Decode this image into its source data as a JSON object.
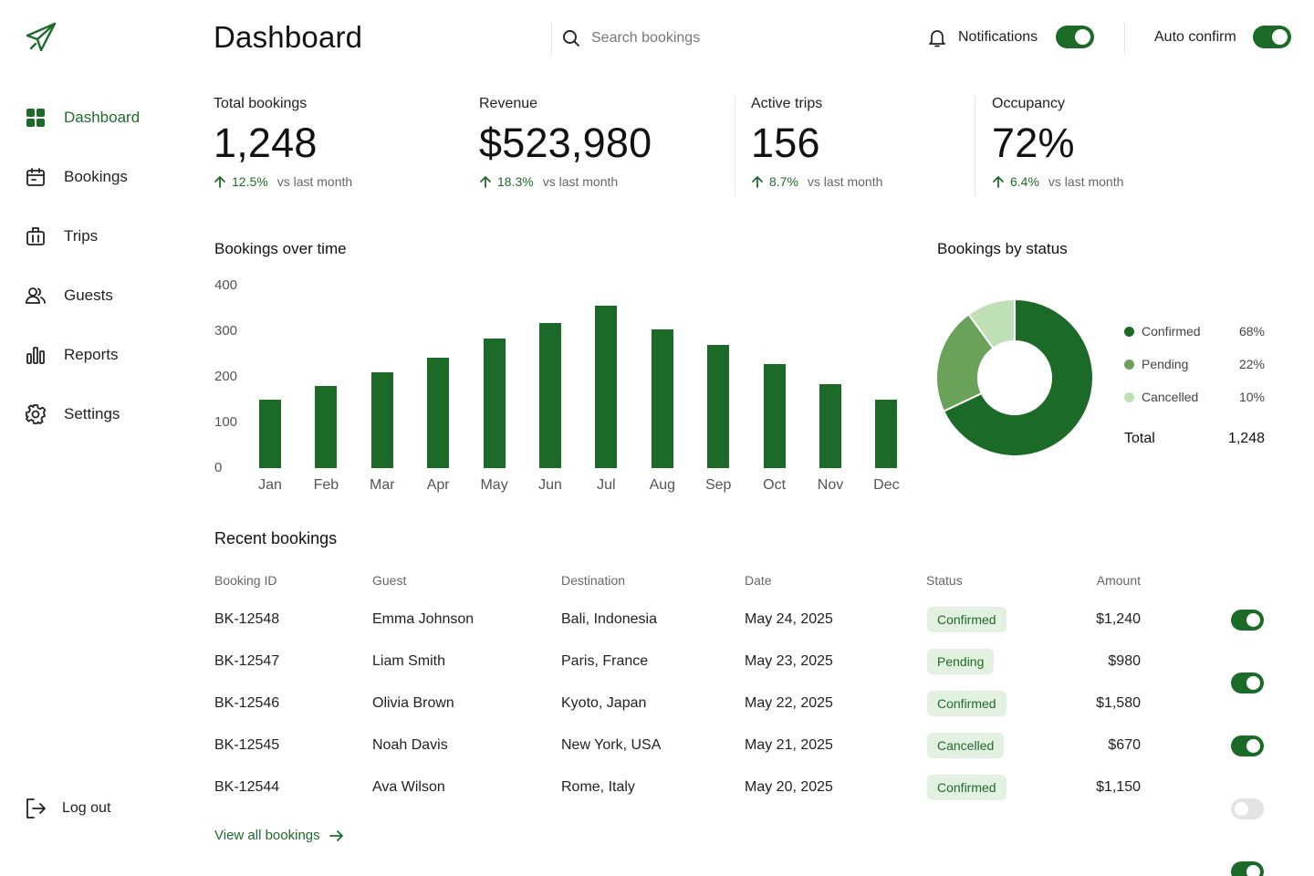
{
  "app": {
    "logo_icon": "plane-icon"
  },
  "sidebar": {
    "items": [
      {
        "label": "Dashboard",
        "icon": "grid-icon",
        "active": true
      },
      {
        "label": "Bookings",
        "icon": "calendar-icon",
        "active": false
      },
      {
        "label": "Trips",
        "icon": "luggage-icon",
        "active": false
      },
      {
        "label": "Guests",
        "icon": "users-icon",
        "active": false
      },
      {
        "label": "Reports",
        "icon": "bar-chart-icon",
        "active": false
      },
      {
        "label": "Settings",
        "icon": "gear-icon",
        "active": false
      }
    ],
    "logout": {
      "label": "Log out",
      "icon": "logout-icon"
    }
  },
  "header": {
    "title": "Dashboard",
    "search": {
      "placeholder": "Search bookings",
      "value": "",
      "icon": "search-icon"
    },
    "notifications": {
      "label": "Notifications",
      "icon": "bell-icon",
      "enabled": true
    },
    "auto_confirm": {
      "label": "Auto confirm",
      "enabled": true
    }
  },
  "stats": [
    {
      "label": "Total bookings",
      "value": "1,248",
      "change": "12.5%",
      "compare": "vs last month"
    },
    {
      "label": "Revenue",
      "value": "$523,980",
      "change": "18.3%",
      "compare": "vs last month"
    },
    {
      "label": "Active trips",
      "value": "156",
      "change": "8.7%",
      "compare": "vs last month"
    },
    {
      "label": "Occupancy",
      "value": "72%",
      "change": "6.4%",
      "compare": "vs last month"
    }
  ],
  "charts": {
    "bookings_title": "Bookings over time",
    "status_title": "Bookings by status"
  },
  "chart_data": [
    {
      "type": "bar",
      "title": "Bookings over time",
      "categories": [
        "Jan",
        "Feb",
        "Mar",
        "Apr",
        "May",
        "Jun",
        "Jul",
        "Aug",
        "Sep",
        "Oct",
        "Nov",
        "Dec"
      ],
      "values": [
        150,
        180,
        210,
        242,
        285,
        318,
        357,
        305,
        270,
        228,
        185,
        150
      ],
      "yticks": [
        "0",
        "100",
        "200",
        "300",
        "400"
      ],
      "ylim": [
        0,
        400
      ],
      "xlabel": "",
      "ylabel": "",
      "color": "#1c6a28",
      "grid": false
    },
    {
      "type": "pie",
      "title": "Bookings by status",
      "donut": true,
      "slices": [
        {
          "name": "Confirmed",
          "value": 68,
          "label": "68%",
          "color": "#1c6a28"
        },
        {
          "name": "Pending",
          "value": 22,
          "label": "22%",
          "color": "#6aa25a"
        },
        {
          "name": "Cancelled",
          "value": 10,
          "label": "10%",
          "color": "#bfe0b4"
        }
      ],
      "total_label": "Total",
      "total_value": "1,248",
      "legend": "right"
    }
  ],
  "table": {
    "title": "Recent bookings",
    "columns": [
      "Booking ID",
      "Guest",
      "Destination",
      "Date",
      "Status",
      "Amount"
    ],
    "rows": [
      {
        "id": "BK-12548",
        "guest": "Emma Johnson",
        "destination": "Bali, Indonesia",
        "date": "May 24, 2025",
        "status": "Confirmed",
        "amount": "$1,240",
        "enabled": true
      },
      {
        "id": "BK-12547",
        "guest": "Liam Smith",
        "destination": "Paris, France",
        "date": "May 23, 2025",
        "status": "Pending",
        "amount": "$980",
        "enabled": true
      },
      {
        "id": "BK-12546",
        "guest": "Olivia Brown",
        "destination": "Kyoto, Japan",
        "date": "May 22, 2025",
        "status": "Confirmed",
        "amount": "$1,580",
        "enabled": true
      },
      {
        "id": "BK-12545",
        "guest": "Noah Davis",
        "destination": "New York, USA",
        "date": "May 21, 2025",
        "status": "Cancelled",
        "amount": "$670",
        "enabled": false
      },
      {
        "id": "BK-12544",
        "guest": "Ava Wilson",
        "destination": "Rome, Italy",
        "date": "May 20, 2025",
        "status": "Confirmed",
        "amount": "$1,150",
        "enabled": true
      }
    ],
    "view_all": "View all bookings"
  },
  "colors": {
    "accent": "#1c6a28",
    "badge_bg": "#e3f1e0",
    "toggle_off": "#e3e3e3"
  }
}
